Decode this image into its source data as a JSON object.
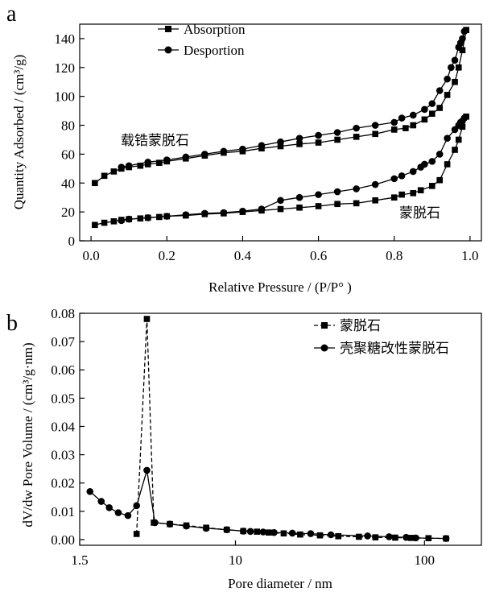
{
  "chart_data": [
    {
      "type": "line",
      "panel_label": "a",
      "xlabel": "Relative Pressure / (P/P°  )",
      "ylabel": "Quantity Adsorbed / (cm³/g)",
      "xlim": [
        -0.03,
        1.03
      ],
      "ylim": [
        0,
        150
      ],
      "xticks": [
        0.0,
        0.2,
        0.4,
        0.6,
        0.8,
        1.0
      ],
      "xtick_labels": [
        "0.0",
        "0.2",
        "0.4",
        "0.6",
        "0.8",
        "1.0"
      ],
      "yticks": [
        0,
        20,
        40,
        60,
        80,
        100,
        120,
        140
      ],
      "ytick_labels": [
        "0",
        "20",
        "40",
        "60",
        "80",
        "100",
        "120",
        "140"
      ],
      "legend": {
        "placement": "top-center",
        "entries": [
          {
            "label": "Absorption",
            "marker": "square"
          },
          {
            "label": "Desportion",
            "marker": "circle"
          }
        ]
      },
      "annotations": [
        {
          "text": "载锆蒙脱石",
          "x": 0.1,
          "y": 65
        },
        {
          "text": "蒙脱石",
          "x": 0.84,
          "y": 19
        }
      ],
      "series": [
        {
          "group": "载锆蒙脱石",
          "branch": "Absorption",
          "marker": "square",
          "x": [
            0.01,
            0.035,
            0.06,
            0.08,
            0.1,
            0.13,
            0.15,
            0.18,
            0.2,
            0.25,
            0.3,
            0.35,
            0.4,
            0.45,
            0.5,
            0.55,
            0.6,
            0.65,
            0.7,
            0.75,
            0.8,
            0.83,
            0.85,
            0.88,
            0.9,
            0.92,
            0.94,
            0.96,
            0.97,
            0.98,
            0.99
          ],
          "y": [
            40,
            45,
            48,
            50,
            51,
            52,
            53,
            54,
            55,
            57,
            59,
            61,
            62,
            64,
            65.5,
            67,
            68,
            70,
            72,
            74,
            77,
            78,
            80,
            84,
            88,
            92,
            101,
            110,
            120,
            132,
            146
          ]
        },
        {
          "group": "载锆蒙脱石",
          "branch": "Desportion",
          "marker": "circle",
          "x": [
            0.08,
            0.1,
            0.15,
            0.2,
            0.25,
            0.3,
            0.35,
            0.4,
            0.45,
            0.5,
            0.55,
            0.6,
            0.65,
            0.7,
            0.75,
            0.8,
            0.82,
            0.85,
            0.88,
            0.9,
            0.92,
            0.94,
            0.95,
            0.96,
            0.97,
            0.975,
            0.98,
            0.985
          ],
          "y": [
            51,
            52,
            54.5,
            56,
            58,
            60,
            62,
            63.5,
            66,
            68.5,
            71,
            73,
            75,
            78,
            80,
            82,
            85,
            87,
            91,
            95,
            104,
            112,
            120,
            125,
            134,
            137,
            140,
            145
          ]
        },
        {
          "group": "蒙脱石",
          "branch": "Absorption",
          "marker": "square",
          "x": [
            0.01,
            0.035,
            0.06,
            0.08,
            0.1,
            0.13,
            0.15,
            0.18,
            0.2,
            0.25,
            0.3,
            0.35,
            0.4,
            0.45,
            0.5,
            0.55,
            0.6,
            0.65,
            0.7,
            0.75,
            0.8,
            0.82,
            0.85,
            0.87,
            0.9,
            0.92,
            0.94,
            0.96,
            0.97,
            0.98,
            0.99
          ],
          "y": [
            11,
            12.5,
            13.5,
            14.5,
            15,
            15.5,
            16,
            16.5,
            17,
            17.5,
            18.5,
            19,
            20,
            21,
            22,
            23,
            24,
            25.5,
            26,
            28,
            30,
            32,
            33,
            35,
            38,
            42,
            53,
            63,
            70,
            79,
            86
          ]
        },
        {
          "group": "蒙脱石",
          "branch": "Desportion",
          "marker": "circle",
          "x": [
            0.08,
            0.1,
            0.15,
            0.2,
            0.25,
            0.3,
            0.35,
            0.4,
            0.45,
            0.5,
            0.55,
            0.6,
            0.65,
            0.7,
            0.75,
            0.8,
            0.82,
            0.85,
            0.87,
            0.88,
            0.9,
            0.92,
            0.94,
            0.96,
            0.97,
            0.975,
            0.98,
            0.985
          ],
          "y": [
            14,
            15,
            16,
            17,
            18,
            19,
            19.5,
            20.5,
            22,
            28,
            30,
            32,
            34,
            36,
            39,
            43,
            45,
            48,
            51,
            53,
            55,
            60,
            71,
            77,
            80,
            82,
            83,
            85
          ]
        }
      ]
    },
    {
      "type": "line",
      "panel_label": "b",
      "xlabel": "Pore diameter / nm",
      "ylabel": "dV/dw Pore Volume / (cm³/g·nm)",
      "xscale": "log",
      "xlim": [
        1.5,
        200
      ],
      "ylim": [
        -0.002,
        0.08
      ],
      "xticks": [
        1.5,
        10,
        100
      ],
      "xtick_labels": [
        "1.5",
        "10",
        "100"
      ],
      "yticks": [
        0.0,
        0.01,
        0.02,
        0.03,
        0.04,
        0.05,
        0.06,
        0.07,
        0.08
      ],
      "ytick_labels": [
        "0.00",
        "0.01",
        "0.02",
        "0.03",
        "0.04",
        "0.05",
        "0.06",
        "0.07",
        "0.08"
      ],
      "legend": {
        "placement": "top-right",
        "entries": [
          {
            "label": "蒙脱石",
            "marker": "square"
          },
          {
            "label": "壳聚糖改性蒙脱石",
            "marker": "circle"
          }
        ]
      },
      "series": [
        {
          "name": "蒙脱石",
          "marker": "square",
          "x": [
            3.0,
            3.4,
            3.7,
            4.5,
            5.5,
            7,
            9,
            11,
            13,
            15,
            18,
            22,
            28,
            35,
            45,
            55,
            70,
            85,
            105,
            130
          ],
          "y": [
            0.002,
            0.078,
            0.006,
            0.0055,
            0.005,
            0.0042,
            0.0035,
            0.003,
            0.0028,
            0.0025,
            0.0022,
            0.0018,
            0.0015,
            0.0012,
            0.001,
            0.0008,
            0.0007,
            0.0006,
            0.0005,
            0.0004
          ]
        },
        {
          "name": "壳聚糖改性蒙脱石",
          "marker": "circle",
          "x": [
            1.7,
            1.95,
            2.15,
            2.4,
            2.7,
            3.0,
            3.4,
            3.75,
            4.5,
            5.5,
            7,
            9,
            11,
            12,
            14,
            16,
            20,
            25,
            32,
            50,
            65,
            80,
            90,
            130
          ],
          "y": [
            0.017,
            0.0135,
            0.0113,
            0.0095,
            0.0085,
            0.012,
            0.0245,
            0.006,
            0.0055,
            0.0048,
            0.004,
            0.0035,
            0.003,
            0.0029,
            0.0027,
            0.0025,
            0.0023,
            0.0021,
            0.0017,
            0.0013,
            0.001,
            0.0008,
            0.0006,
            0.0004
          ]
        }
      ]
    }
  ]
}
